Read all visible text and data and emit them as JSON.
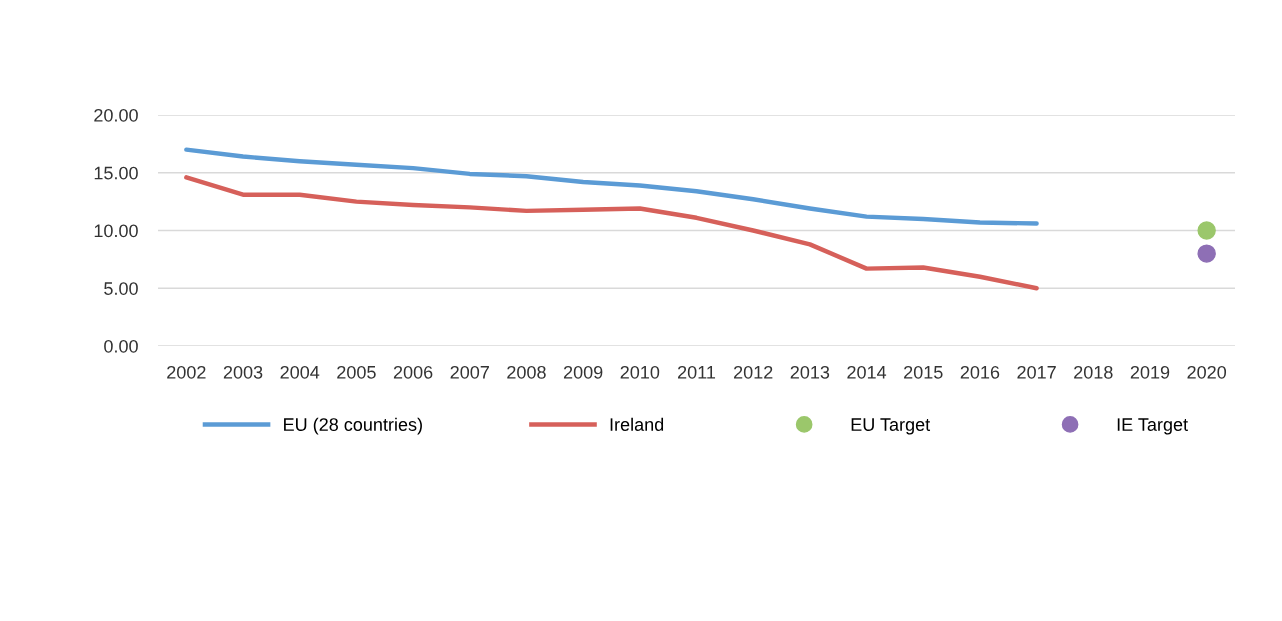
{
  "chart_data": {
    "type": "line",
    "categories": [
      "2002",
      "2003",
      "2004",
      "2005",
      "2006",
      "2007",
      "2008",
      "2009",
      "2010",
      "2011",
      "2012",
      "2013",
      "2014",
      "2015",
      "2016",
      "2017",
      "2018",
      "2019",
      "2020"
    ],
    "series": [
      {
        "name": "EU (28 countries)",
        "color": "#5b9bd5",
        "values": [
          17.0,
          16.4,
          16.0,
          15.7,
          15.4,
          14.9,
          14.7,
          14.2,
          13.9,
          13.4,
          12.7,
          11.9,
          11.2,
          11.0,
          10.7,
          10.6,
          null,
          null,
          null
        ]
      },
      {
        "name": "Ireland",
        "color": "#d6605a",
        "values": [
          14.6,
          13.1,
          13.1,
          12.5,
          12.2,
          12.0,
          11.7,
          11.8,
          11.9,
          11.1,
          10.0,
          8.8,
          6.7,
          6.8,
          6.0,
          5.0,
          null,
          null,
          null
        ]
      },
      {
        "name": "EU Target",
        "type": "scatter",
        "marker": "circle",
        "color": "#9bc76b",
        "values": [
          null,
          null,
          null,
          null,
          null,
          null,
          null,
          null,
          null,
          null,
          null,
          null,
          null,
          null,
          null,
          null,
          null,
          null,
          10.0
        ]
      },
      {
        "name": "IE Target",
        "type": "scatter",
        "marker": "circle",
        "color": "#8e6fb5",
        "values": [
          null,
          null,
          null,
          null,
          null,
          null,
          null,
          null,
          null,
          null,
          null,
          null,
          null,
          null,
          null,
          null,
          null,
          null,
          8.0
        ]
      }
    ],
    "ylim": [
      0,
      20
    ],
    "yticks": [
      {
        "value": 0,
        "label": "0.00"
      },
      {
        "value": 5,
        "label": "5.00"
      },
      {
        "value": 10,
        "label": "10.00"
      },
      {
        "value": 15,
        "label": "15.00"
      },
      {
        "value": 20,
        "label": "20.00"
      }
    ],
    "grid": "y",
    "legend": "bottom",
    "marker": "none",
    "line_style": "solid"
  }
}
